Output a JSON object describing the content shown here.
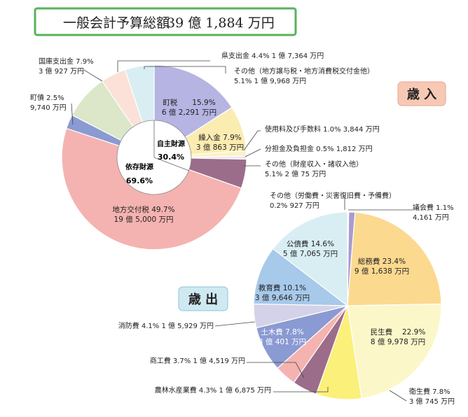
{
  "header": {
    "label": "一般会計予算総額",
    "total": "39 億 1,884 万円"
  },
  "colors": {
    "title_border": "#58b25a",
    "revenue_badge": "#f7c9b5",
    "expense_badge": "#cfe9f2"
  },
  "chart_data": [
    {
      "type": "pie",
      "chart_id": "revenue",
      "title": "歳 入",
      "center_labels": {
        "own": "自主財源",
        "own_pct": "30.4%",
        "dep": "依存財源",
        "dep_pct": "69.6%"
      },
      "slices": [
        {
          "name": "町税",
          "percent": 15.9,
          "amount": "6 億 2,291 万円",
          "color": "#b6b4e2",
          "label_inside": true,
          "line1": "町税　　15.9%",
          "line2": "6 億 2,291 万円"
        },
        {
          "name": "繰入金",
          "percent": 7.9,
          "amount": "3 億 863 万円",
          "color": "#fbecb2",
          "label_inside": true,
          "line1": "繰入金  7.9%",
          "line2": "3 億 863 万円"
        },
        {
          "name": "使用料及び手数料",
          "percent": 1.0,
          "amount": "3,844 万円",
          "color": "#fbf2c8",
          "label_inside": false,
          "line1": "使用料及び手数料  1.0% 3,844 万円",
          "line2": ""
        },
        {
          "name": "分担金及負担金",
          "percent": 0.5,
          "amount": "1,812 万円",
          "color": "#e6e2ef",
          "label_inside": false,
          "line1": "分担金及負担金  0.5% 1,812 万円",
          "line2": ""
        },
        {
          "name": "その他（財産収入・諸収入他）",
          "percent": 5.1,
          "amount": "2 億 75 万円",
          "color": "#9b6d8a",
          "label_inside": false,
          "line1": "その他（財産収入・諸収入他）",
          "line2": "5.1% 2 億 75 万円"
        },
        {
          "name": "地方交付税",
          "percent": 49.7,
          "amount": "19 億 5,000 万円",
          "color": "#f4b3b0",
          "label_inside": true,
          "line1": "地方交付税  49.7%",
          "line2": "19 億 5,000 万円"
        },
        {
          "name": "町債",
          "percent": 2.5,
          "amount": "9,740 万円",
          "color": "#8a9ad2",
          "label_inside": false,
          "line1": "町債 2.5%",
          "line2": "9,740 万円"
        },
        {
          "name": "国庫支出金",
          "percent": 7.9,
          "amount": "3 億 927 万円",
          "color": "#dbe7c8",
          "label_inside": false,
          "line1": "国庫支出金  7.9%",
          "line2": "3 億 927 万円"
        },
        {
          "name": "県支出金",
          "percent": 4.4,
          "amount": "1 億 7,364 万円",
          "color": "#fbe1d7",
          "label_inside": false,
          "line1": "県支出金  4.4% 1 億 7,364 万円",
          "line2": ""
        },
        {
          "name": "その他（地方譲与税・地方消費税交付金他）",
          "percent": 5.1,
          "amount": "1 億 9,968 万円",
          "color": "#d8eef3",
          "label_inside": false,
          "line1": "その他（地方譲与税・地方消費税交付金他）",
          "line2": "5.1% 1 億 9,968 万円"
        }
      ]
    },
    {
      "type": "pie",
      "chart_id": "expense",
      "title": "歳 出",
      "slices": [
        {
          "name": "その他（労働費・災害復旧費・予備費）",
          "percent": 0.2,
          "amount": "927 万円",
          "color": "#eeeeee",
          "label_inside": false,
          "line1": "その他（労働費・災害復旧費・予備費）",
          "line2": "0.2% 927 万円"
        },
        {
          "name": "議会費",
          "percent": 1.1,
          "amount": "4,161 万円",
          "color": "#a99bd0",
          "label_inside": false,
          "line1": "議会費  1.1%",
          "line2": "4,161 万円"
        },
        {
          "name": "総務費",
          "percent": 23.4,
          "amount": "9 億 1,638 万円",
          "color": "#fbd98f",
          "label_inside": true,
          "line1": "総務費  23.4%",
          "line2": "9 億 1,638 万円"
        },
        {
          "name": "民生費",
          "percent": 22.9,
          "amount": "8 億 9,978 万円",
          "color": "#fbf7c9",
          "label_inside": true,
          "line1": "民生費　 22.9%",
          "line2": "8 億 9,978 万円"
        },
        {
          "name": "衛生費",
          "percent": 7.8,
          "amount": "3 億 745 万円",
          "color": "#fbf07a",
          "label_inside": false,
          "line1": "衛生費  7.8%",
          "line2": "3 億 745 万円"
        },
        {
          "name": "農林水産業費",
          "percent": 4.3,
          "amount": "1 億 6,875 万円",
          "color": "#9b6d8a",
          "label_inside": false,
          "line1": "農林水産業費  4.3% 1 億 6,875 万円",
          "line2": ""
        },
        {
          "name": "商工費",
          "percent": 3.7,
          "amount": "1 億 4,519 万円",
          "color": "#f4b3b0",
          "label_inside": false,
          "line1": "商工費  3.7% 1 億 4,519 万円",
          "line2": ""
        },
        {
          "name": "土木費",
          "percent": 7.8,
          "amount": "3 億 401 万円",
          "color": "#8a9ad2",
          "label_inside": true,
          "text_color": "#ffffff",
          "line1": "土木費  7.8%",
          "line2": "3 億 401 万円"
        },
        {
          "name": "消防費",
          "percent": 4.1,
          "amount": "1 億 5,929 万円",
          "color": "#d4d2e8",
          "label_inside": false,
          "line1": "消防費  4.1% 1 億 5,929 万円",
          "line2": ""
        },
        {
          "name": "教育費",
          "percent": 10.1,
          "amount": "3 億 9,646 万円",
          "color": "#a7c9ea",
          "label_inside": true,
          "line1": "教育費  10.1%",
          "line2": "3 億 9,646 万円"
        },
        {
          "name": "公債費",
          "percent": 14.6,
          "amount": "5 億 7,065 万円",
          "color": "#d8eef3",
          "label_inside": true,
          "line1": "公債費  14.6%",
          "line2": "5 億 7,065 万円"
        }
      ]
    }
  ]
}
